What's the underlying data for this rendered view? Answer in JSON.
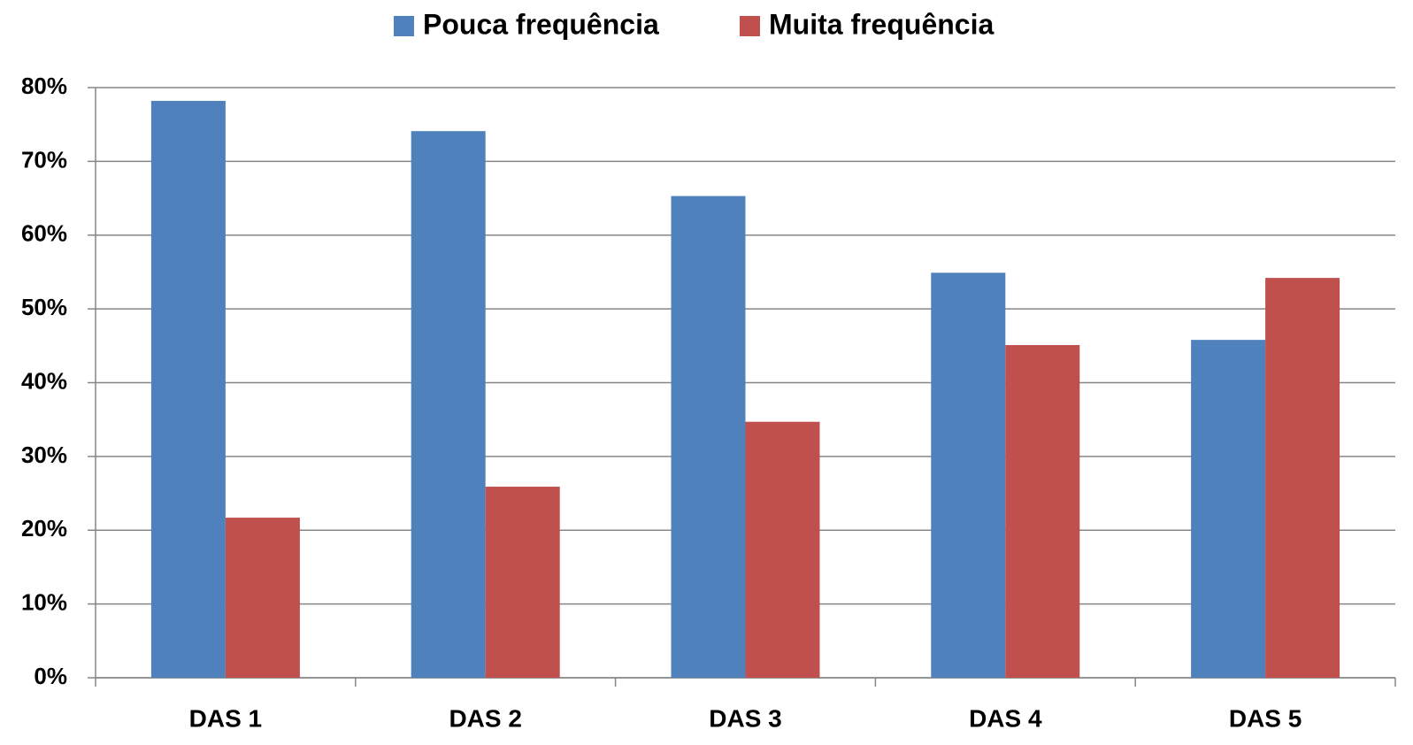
{
  "chart_data": {
    "type": "bar",
    "categories": [
      "DAS 1",
      "DAS 2",
      "DAS 3",
      "DAS 4",
      "DAS 5"
    ],
    "series": [
      {
        "name": "Pouca frequência",
        "color": "#4f81bd",
        "values": [
          78.2,
          74.1,
          65.3,
          54.9,
          45.8
        ]
      },
      {
        "name": "Muita frequência",
        "color": "#c0504d",
        "values": [
          21.7,
          25.9,
          34.7,
          45.1,
          54.2
        ]
      }
    ],
    "ylim": [
      0,
      80
    ],
    "yticks": [
      {
        "value": 0,
        "label": "0%"
      },
      {
        "value": 10,
        "label": "10%"
      },
      {
        "value": 20,
        "label": "20%"
      },
      {
        "value": 30,
        "label": "30%"
      },
      {
        "value": 40,
        "label": "40%"
      },
      {
        "value": 50,
        "label": "50%"
      },
      {
        "value": 60,
        "label": "60%"
      },
      {
        "value": 70,
        "label": "70%"
      },
      {
        "value": 80,
        "label": "80%"
      }
    ],
    "grid": true,
    "legend": "top"
  }
}
